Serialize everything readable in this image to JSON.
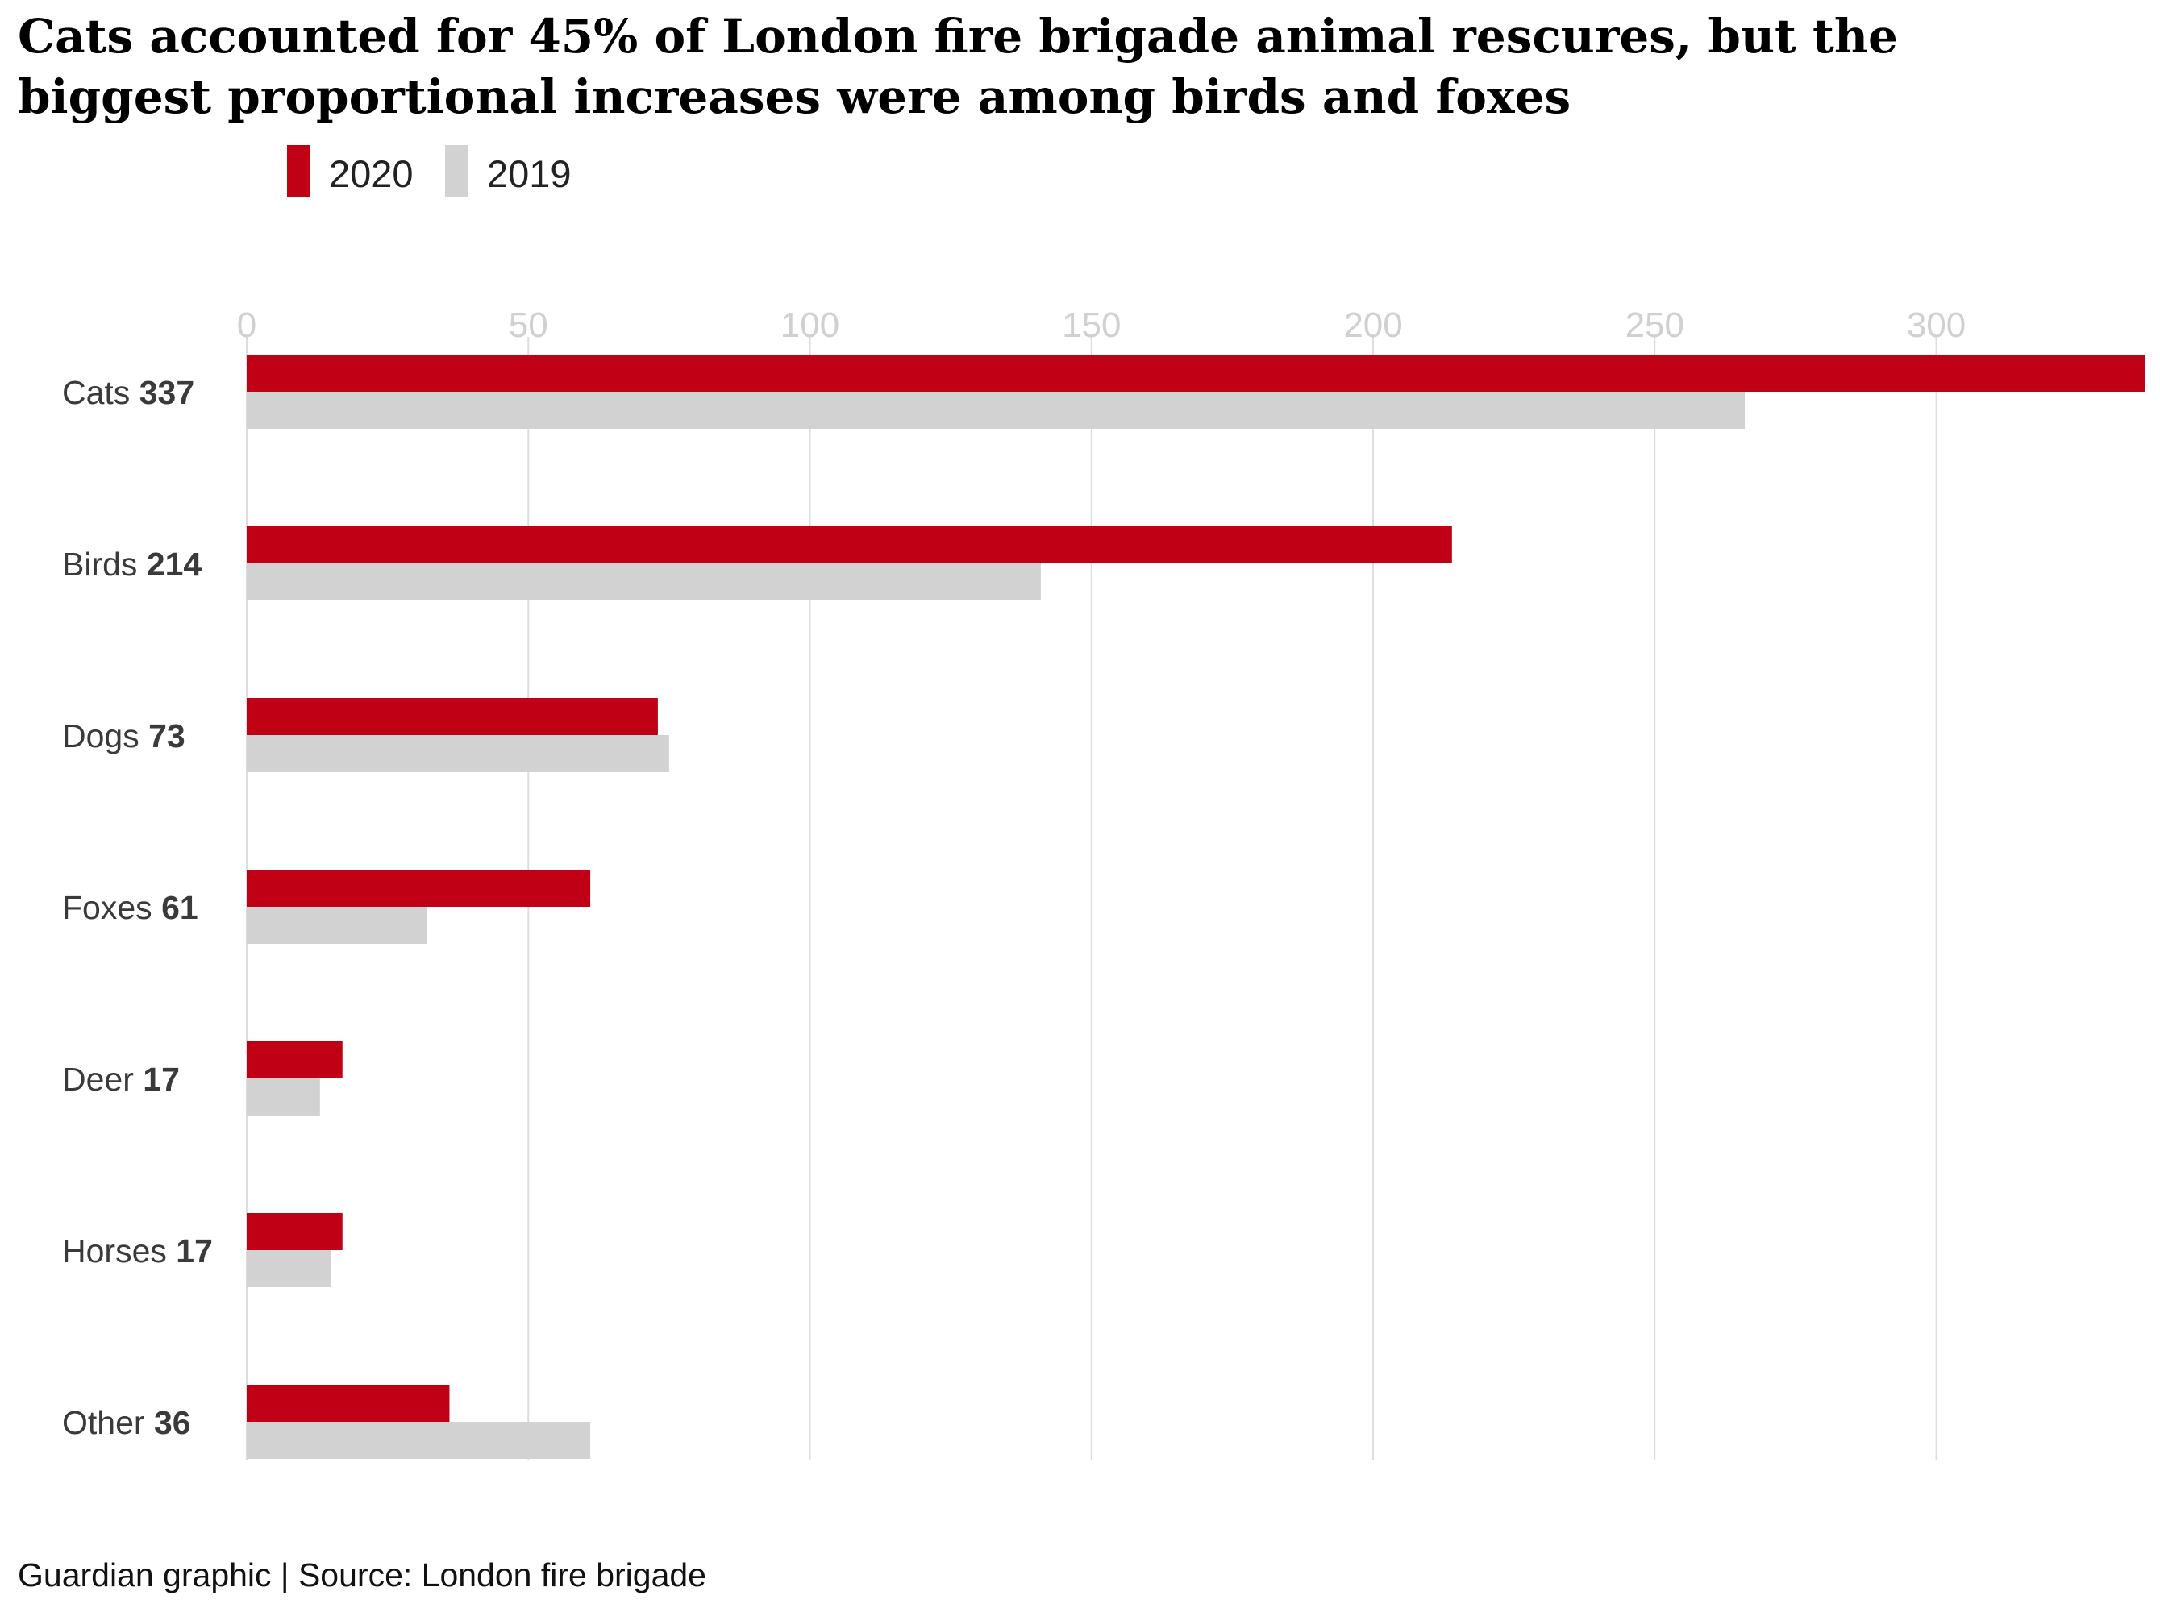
{
  "chart_data": {
    "type": "bar",
    "orientation": "horizontal",
    "title": "Cats accounted for 45% of London fire brigade animal rescures, but the biggest proportional increases were among birds and foxes",
    "title_lines": [
      "Cats accounted for 45% of London fire brigade animal rescures, but the",
      "biggest proportional increases were among birds and foxes"
    ],
    "source": "Guardian graphic | Source: London fire brigade",
    "legend_position": "top",
    "grid": true,
    "xlim": [
      0,
      337
    ],
    "x_ticks": [
      "0",
      "50",
      "100",
      "150",
      "200",
      "250",
      "300"
    ],
    "categories": [
      "Cats",
      "Birds",
      "Dogs",
      "Foxes",
      "Deer",
      "Horses",
      "Other"
    ],
    "category_value_labels": [
      "337",
      "214",
      "73",
      "61",
      "17",
      "17",
      "36"
    ],
    "series": [
      {
        "name": "2020",
        "color": "#c00015",
        "values": [
          337,
          214,
          73,
          61,
          17,
          17,
          36
        ]
      },
      {
        "name": "2019",
        "color": "#d2d2d2",
        "values": [
          266,
          141,
          75,
          32,
          13,
          15,
          61
        ]
      }
    ],
    "colors": {
      "gridline": "#dddddd",
      "tick_label": "#d0d0d0",
      "category_label": "#3a3a3a"
    }
  }
}
